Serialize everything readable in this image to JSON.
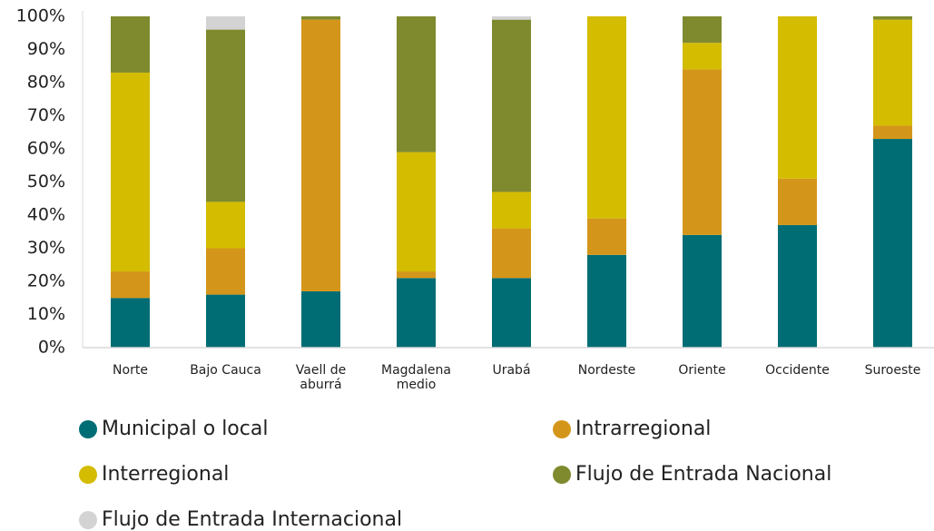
{
  "chart_data": {
    "type": "stacked_bar",
    "categories": [
      "Norte",
      "Bajo Cauca",
      "Vaell de aburrá",
      "Magdalena medio",
      "Urabá",
      "Nordeste",
      "Oriente",
      "Occidente",
      "Suroeste"
    ],
    "series": [
      {
        "name": "Municipal o local",
        "color": "#006d75",
        "values": [
          15,
          16,
          17,
          21,
          21,
          28,
          34,
          37,
          63
        ]
      },
      {
        "name": "Intrarregional",
        "color": "#d4961a",
        "values": [
          8,
          14,
          82,
          2,
          15,
          11,
          50,
          14,
          4
        ]
      },
      {
        "name": "Interregional",
        "color": "#d4bc00",
        "values": [
          60,
          14,
          0,
          36,
          11,
          61,
          8,
          49,
          32
        ]
      },
      {
        "name": "Flujo de Entrada Nacional",
        "color": "#7f8a2e",
        "values": [
          17,
          52,
          1,
          41,
          52,
          0,
          8,
          0,
          1
        ]
      },
      {
        "name": "Flujo de Entrada Internacional",
        "color": "#d3d3d3",
        "values": [
          0,
          4,
          0,
          0,
          1,
          0,
          0,
          0,
          0
        ]
      }
    ],
    "ylim": [
      0,
      100
    ],
    "yticks": [
      {
        "value": 0,
        "label": "0%"
      },
      {
        "value": 10,
        "label": "10%"
      },
      {
        "value": 20,
        "label": "20%"
      },
      {
        "value": 30,
        "label": "30%"
      },
      {
        "value": 40,
        "label": "40%"
      },
      {
        "value": 50,
        "label": "50%"
      },
      {
        "value": 60,
        "label": "60%"
      },
      {
        "value": 70,
        "label": "70%"
      },
      {
        "value": 80,
        "label": "80%"
      },
      {
        "value": 90,
        "label": "90%"
      },
      {
        "value": 100,
        "label": "100%"
      }
    ],
    "legend": "bottom"
  }
}
